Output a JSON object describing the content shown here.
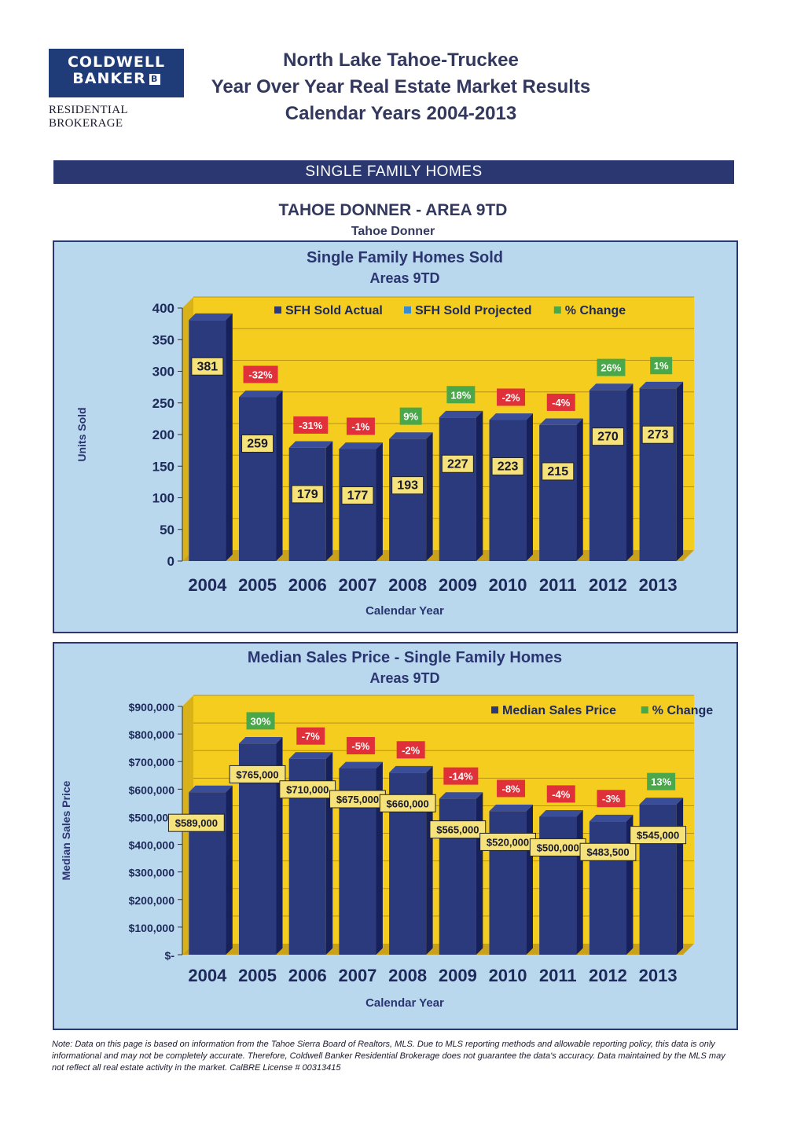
{
  "logo": {
    "line1": "COLDWELL",
    "line2": "BANKER",
    "mark": "B",
    "sub": "RESIDENTIAL BROKERAGE"
  },
  "header": {
    "line1": "North Lake Tahoe-Truckee",
    "line2": "Year Over Year Real Estate Market Results",
    "line3": "Calendar Years 2004-2013"
  },
  "band": "SINGLE FAMILY HOMES",
  "area_title": "TAHOE DONNER - AREA 9TD",
  "area_subtitle": "Tahoe Donner",
  "colors": {
    "bar": "#2b3a7c",
    "bar_side": "#16205a",
    "bar_top": "#3a4d98",
    "plot_bg": "#f5cd1f",
    "floor": "#c9a11a",
    "frame_bg": "#b9d8ee",
    "label_bg": "#f5e27a",
    "neg": "#e0303a",
    "pos": "#4aa84a",
    "projected": "#3a8ad0"
  },
  "chart_data": [
    {
      "type": "bar",
      "title": "Single Family Homes Sold",
      "subtitle": "Areas 9TD",
      "xlabel": "Calendar Year",
      "ylabel": "Units Sold",
      "ylim": [
        0,
        400
      ],
      "yticks": [
        "0",
        "50",
        "100",
        "150",
        "200",
        "250",
        "300",
        "350",
        "400"
      ],
      "legend": [
        "SFH Sold Actual",
        "SFH Sold Projected",
        "% Change"
      ],
      "legend_position": "top",
      "categories": [
        "2004",
        "2005",
        "2006",
        "2007",
        "2008",
        "2009",
        "2010",
        "2011",
        "2012",
        "2013"
      ],
      "values": [
        381,
        259,
        179,
        177,
        193,
        227,
        223,
        215,
        270,
        273
      ],
      "value_labels": [
        "381",
        "259",
        "179",
        "177",
        "193",
        "227",
        "223",
        "215",
        "270",
        "273"
      ],
      "pct_change": [
        null,
        "-32%",
        "-31%",
        "-1%",
        "9%",
        "18%",
        "-2%",
        "-4%",
        "26%",
        "1%"
      ]
    },
    {
      "type": "bar",
      "title": "Median Sales Price - Single Family Homes",
      "subtitle": "Areas 9TD",
      "xlabel": "Calendar Year",
      "ylabel": "Median Sales Price",
      "ylim": [
        0,
        900000
      ],
      "yticks": [
        "$-",
        "$100,000",
        "$200,000",
        "$300,000",
        "$400,000",
        "$500,000",
        "$600,000",
        "$700,000",
        "$800,000",
        "$900,000"
      ],
      "legend": [
        "Median Sales Price",
        "% Change"
      ],
      "legend_position": "top-right",
      "categories": [
        "2004",
        "2005",
        "2006",
        "2007",
        "2008",
        "2009",
        "2010",
        "2011",
        "2012",
        "2013"
      ],
      "values": [
        589000,
        765000,
        710000,
        675000,
        660000,
        565000,
        520000,
        500000,
        483500,
        545000
      ],
      "value_labels": [
        "$589,000",
        "$765,000",
        "$710,000",
        "$675,000",
        "$660,000",
        "$565,000",
        "$520,000",
        "$500,000",
        "$483,500",
        "$545,000"
      ],
      "pct_change": [
        null,
        "30%",
        "-7%",
        "-5%",
        "-2%",
        "-14%",
        "-8%",
        "-4%",
        "-3%",
        "13%"
      ]
    }
  ],
  "note": "Note: Data on this page is based on information from the Tahoe Sierra Board of Realtors, MLS.  Due to MLS reporting methods and allowable reporting policy, this data is only informational and may not be completely accurate.  Therefore, Coldwell Banker Residential Brokerage does not guarantee the data's accuracy.  Data maintained by the MLS may not reflect all real estate activity in the market.  CalBRE License # 00313415"
}
